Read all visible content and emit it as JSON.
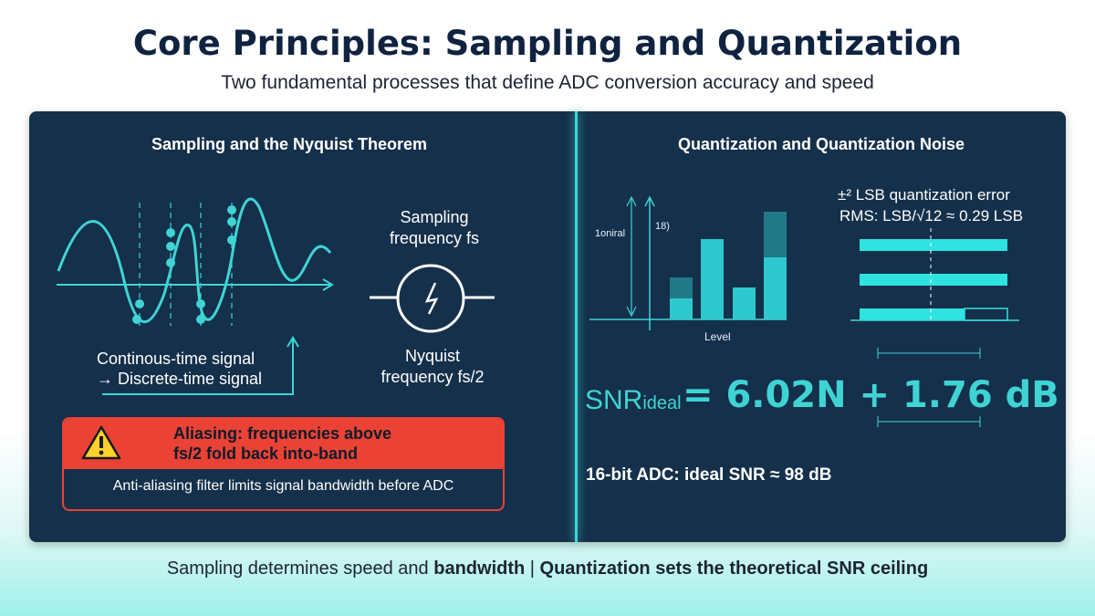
{
  "header": {
    "title": "Core Principles: Sampling and Quantization",
    "subtitle": "Two fundamental processes that define ADC conversion accuracy and speed"
  },
  "left": {
    "title": "Sampling and the Nyquist Theorem",
    "sampling_label": "Sampling\nfrequency fs",
    "nyquist_label": "Nyquist\nfrequency fs/2",
    "signal_line1": "Continous-time signal",
    "signal_line2": "→ Discrete-time signal",
    "alert_title": "Aliasing: frequencies above\nfs/2 fold back into-band",
    "alert_note": "Anti-aliasing filter limits signal bandwidth before ADC"
  },
  "right": {
    "title": "Quantization and Quantization Noise",
    "axis_label_left": "1oniral",
    "axis_label_mid": "18)",
    "axis_label_x": "Level",
    "error_line1": "±² LSB quantization error",
    "error_line2": "RMS: LSB/√12 ≈ 0.29 LSB",
    "snr_label": "SNR",
    "snr_sub": "ideal",
    "snr_formula": "= 6.02N + 1.76 dB",
    "bit_text": "16-bit ADC: ideal SNR ≈ 98 dB"
  },
  "footer": {
    "text_normal": "Sampling determines speed and ",
    "text_bold1": "bandwidth",
    "text_sep": " | ",
    "text_bold2": "Quantization sets the theoretical SNR ceiling"
  },
  "colors": {
    "panel": "#14304b",
    "accent": "#3fd4d4",
    "alert": "#ea4335",
    "title": "#0f2340"
  }
}
